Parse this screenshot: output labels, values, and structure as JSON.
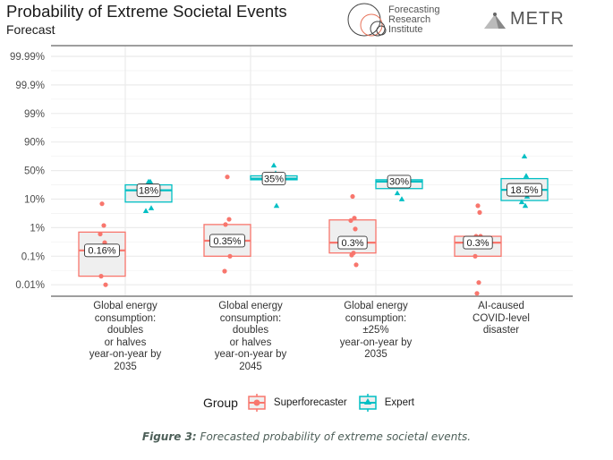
{
  "header": {
    "title": "Probability of Extreme Societal Events",
    "subtitle": "Forecast",
    "logos": {
      "fri": [
        "Forecasting",
        "Research",
        "Institute"
      ],
      "metr": "METR"
    }
  },
  "colors": {
    "superforecaster": "#f8766d",
    "expert": "#00bfc4",
    "grid": "#ebebeb",
    "box_fill": "#efefef"
  },
  "chart_data": {
    "type": "boxplot",
    "title": "Probability of Extreme Societal Events",
    "subtitle": "Forecast",
    "xlabel": "",
    "ylabel": "",
    "y_scale": "logit",
    "y_ticks": [
      "0.01%",
      "0.1%",
      "1%",
      "10%",
      "50%",
      "90%",
      "99%",
      "99.9%",
      "99.99%"
    ],
    "y_tick_values": [
      0.0001,
      0.001,
      0.01,
      0.1,
      0.5,
      0.9,
      0.99,
      0.999,
      0.9999
    ],
    "grid": true,
    "legend": {
      "title": "Group",
      "position": "bottom",
      "entries": [
        "Superforecaster",
        "Expert"
      ]
    },
    "categories": [
      "Global energy\nconsumption:\ndoubles\nor halves\nyear-on-year by\n2035",
      "Global energy\nconsumption:\ndoubles\nor halves\nyear-on-year by\n2045",
      "Global energy\nconsumption:\n±25%\nyear-on-year by\n2035",
      "AI-caused\nCOVID-level\ndisaster"
    ],
    "series": [
      {
        "name": "Superforecaster",
        "marker": "circle",
        "boxes": [
          {
            "q1": 0.0002,
            "median": 0.0016,
            "q3": 0.007,
            "label": "0.16%",
            "points": [
              0.07,
              0.012,
              0.006,
              0.003,
              0.0016,
              0.0012,
              0.0002,
              0.0001
            ]
          },
          {
            "q1": 0.001,
            "median": 0.0035,
            "q3": 0.013,
            "label": "0.35%",
            "points": [
              0.38,
              0.02,
              0.013,
              0.001,
              0.0003
            ]
          },
          {
            "q1": 0.0013,
            "median": 0.003,
            "q3": 0.019,
            "label": "0.3%",
            "points": [
              0.12,
              0.022,
              0.018,
              0.009,
              0.003,
              0.0013,
              0.0011,
              0.0005
            ]
          },
          {
            "q1": 0.001,
            "median": 0.003,
            "q3": 0.005,
            "label": "0.3%",
            "points": [
              0.06,
              0.035,
              0.005,
              0.005,
              0.001,
              0.00012,
              5e-05
            ]
          }
        ]
      },
      {
        "name": "Expert",
        "marker": "triangle",
        "boxes": [
          {
            "q1": 0.08,
            "median": 0.18,
            "q3": 0.25,
            "label": "18%",
            "points": [
              0.3,
              0.3,
              0.2,
              0.05,
              0.04
            ]
          },
          {
            "q1": 0.33,
            "median": 0.35,
            "q3": 0.4,
            "label": "35%",
            "points": [
              0.6,
              0.45,
              0.35,
              0.06
            ]
          },
          {
            "q1": 0.2,
            "median": 0.3,
            "q3": 0.33,
            "label": "30%",
            "points": [
              0.35,
              0.3,
              0.15,
              0.1
            ]
          },
          {
            "q1": 0.09,
            "median": 0.185,
            "q3": 0.35,
            "label": "18.5%",
            "points": [
              0.75,
              0.4,
              0.2,
              0.12,
              0.08,
              0.06
            ]
          }
        ]
      }
    ]
  },
  "legend": {
    "title": "Group",
    "items": [
      "Superforecaster",
      "Expert"
    ]
  },
  "caption": {
    "prefix": "Figure 3:",
    "text": " Forecasted probability of extreme societal events."
  }
}
